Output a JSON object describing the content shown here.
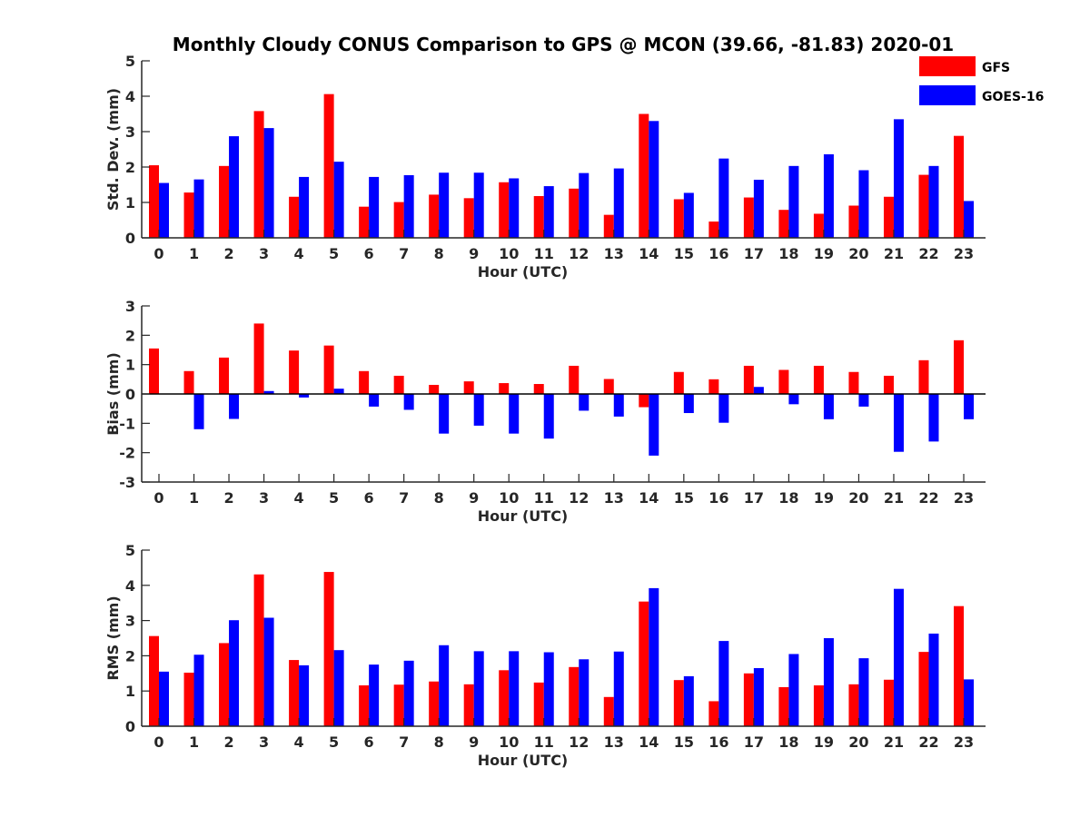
{
  "chart_data": {
    "title": "Monthly Cloudy CONUS Comparison to GPS @ MCON (39.66, -81.83) 2020-01",
    "legend": {
      "placement": "top-right",
      "entries": [
        {
          "name": "GFS",
          "color": "#ff0000"
        },
        {
          "name": "GOES-16",
          "color": "#0000ff"
        }
      ]
    },
    "panels": [
      {
        "type": "bar",
        "xlabel": "Hour (UTC)",
        "ylabel": "Std. Dev. (mm)",
        "ylim": [
          0,
          5
        ],
        "yticks": [
          "0",
          "1",
          "2",
          "3",
          "4",
          "5"
        ],
        "categories": [
          "0",
          "1",
          "2",
          "3",
          "4",
          "5",
          "6",
          "7",
          "8",
          "9",
          "10",
          "11",
          "12",
          "13",
          "14",
          "15",
          "16",
          "17",
          "18",
          "19",
          "20",
          "21",
          "22",
          "23"
        ],
        "series": [
          {
            "name": "GFS",
            "color": "#ff0000",
            "values": [
              2.05,
              1.28,
              2.03,
              3.58,
              1.16,
              4.06,
              0.88,
              1.01,
              1.22,
              1.12,
              1.57,
              1.18,
              1.39,
              0.65,
              3.5,
              1.09,
              0.46,
              1.14,
              0.79,
              0.68,
              0.91,
              1.16,
              1.78,
              2.88
            ]
          },
          {
            "name": "GOES-16",
            "color": "#0000ff",
            "values": [
              1.55,
              1.65,
              2.87,
              3.1,
              1.72,
              2.15,
              1.72,
              1.77,
              1.84,
              1.84,
              1.68,
              1.46,
              1.83,
              1.96,
              3.3,
              1.27,
              2.24,
              1.64,
              2.03,
              2.36,
              1.91,
              3.35,
              2.03,
              1.04
            ]
          }
        ]
      },
      {
        "type": "bar",
        "xlabel": "Hour (UTC)",
        "ylabel": "Bias (mm)",
        "ylim": [
          -3,
          3
        ],
        "yticks": [
          "-3",
          "-2",
          "-1",
          "0",
          "1",
          "2",
          "3"
        ],
        "categories": [
          "0",
          "1",
          "2",
          "3",
          "4",
          "5",
          "6",
          "7",
          "8",
          "9",
          "10",
          "11",
          "12",
          "13",
          "14",
          "15",
          "16",
          "17",
          "18",
          "19",
          "20",
          "21",
          "22",
          "23"
        ],
        "series": [
          {
            "name": "GFS",
            "color": "#ff0000",
            "values": [
              1.55,
              0.78,
              1.24,
              2.4,
              1.48,
              1.65,
              0.78,
              0.62,
              0.31,
              0.43,
              0.37,
              0.34,
              0.96,
              0.51,
              -0.45,
              0.75,
              0.5,
              0.96,
              0.82,
              0.96,
              0.75,
              0.62,
              1.15,
              1.83
            ]
          },
          {
            "name": "GOES-16",
            "color": "#0000ff",
            "values": [
              0.0,
              -1.2,
              -0.85,
              0.1,
              -0.12,
              0.18,
              -0.43,
              -0.54,
              -1.35,
              -1.08,
              -1.35,
              -1.52,
              -0.57,
              -0.77,
              -2.1,
              -0.65,
              -0.98,
              0.24,
              -0.35,
              -0.86,
              -0.43,
              -1.97,
              -1.62,
              -0.86
            ]
          }
        ]
      },
      {
        "type": "bar",
        "xlabel": "Hour (UTC)",
        "ylabel": "RMS (mm)",
        "ylim": [
          0,
          5
        ],
        "yticks": [
          "0",
          "1",
          "2",
          "3",
          "4",
          "5"
        ],
        "categories": [
          "0",
          "1",
          "2",
          "3",
          "4",
          "5",
          "6",
          "7",
          "8",
          "9",
          "10",
          "11",
          "12",
          "13",
          "14",
          "15",
          "16",
          "17",
          "18",
          "19",
          "20",
          "21",
          "22",
          "23"
        ],
        "series": [
          {
            "name": "GFS",
            "color": "#ff0000",
            "values": [
              2.56,
              1.52,
              2.36,
              4.31,
              1.88,
              4.38,
              1.16,
              1.18,
              1.27,
              1.19,
              1.59,
              1.24,
              1.68,
              0.83,
              3.54,
              1.31,
              0.71,
              1.5,
              1.11,
              1.16,
              1.19,
              1.32,
              2.11,
              3.41
            ]
          },
          {
            "name": "GOES-16",
            "color": "#0000ff",
            "values": [
              1.55,
              2.03,
              3.01,
              3.08,
              1.73,
              2.16,
              1.75,
              1.86,
              2.3,
              2.13,
              2.13,
              2.1,
              1.9,
              2.12,
              3.92,
              1.42,
              2.42,
              1.65,
              2.05,
              2.5,
              1.93,
              3.9,
              2.63,
              1.33
            ]
          }
        ]
      }
    ]
  }
}
